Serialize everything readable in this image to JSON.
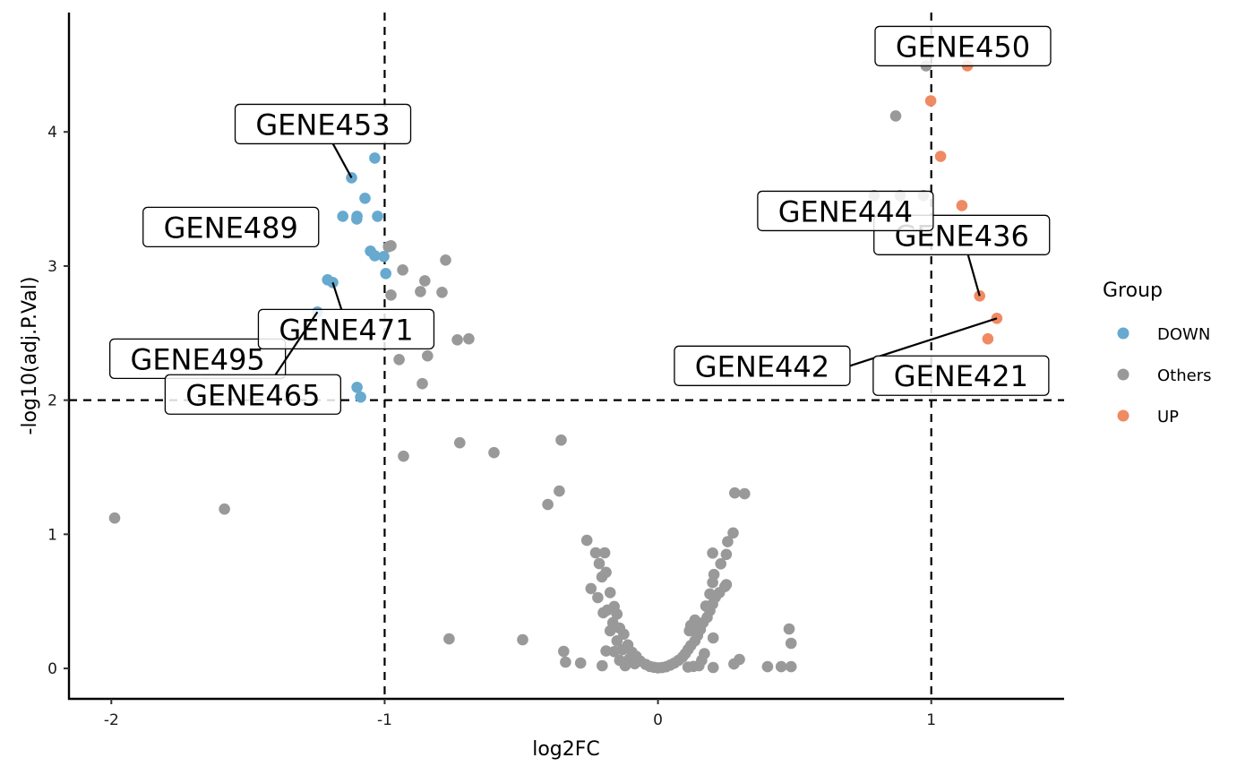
{
  "chart_data": {
    "type": "scatter",
    "title": "",
    "xlabel": "log2FC",
    "ylabel": "-log10(adj.P.Val)",
    "xlim": [
      -2.155,
      1.486
    ],
    "ylim": [
      -0.227,
      4.89
    ],
    "xticks": [
      -2,
      -1,
      0,
      1
    ],
    "xtick_labels": [
      "-2",
      "-1",
      "0",
      "1"
    ],
    "yticks": [
      0,
      1,
      2,
      3,
      4
    ],
    "ytick_labels": [
      "0",
      "1",
      "2",
      "3",
      "4"
    ],
    "grid": false,
    "thresholds": {
      "log2FC": [
        -1,
        1
      ],
      "neg_log10_padj": 2
    },
    "legend": {
      "title": "Group",
      "placement": "right",
      "entries": [
        {
          "label": "DOWN",
          "color": "#67A9CF"
        },
        {
          "label": "Others",
          "color": "#999999"
        },
        {
          "label": "UP",
          "color": "#EF8A62"
        }
      ]
    },
    "series": [
      {
        "name": "Others",
        "color": "#999999",
        "points": [
          [
            0.981,
            4.493
          ],
          [
            0.87,
            4.119
          ],
          [
            0.791,
            3.525
          ],
          [
            0.886,
            3.525
          ],
          [
            0.971,
            3.525
          ],
          [
            -0.977,
            3.151
          ],
          [
            -0.986,
            3.144
          ],
          [
            -0.934,
            2.971
          ],
          [
            -0.777,
            3.044
          ],
          [
            -0.977,
            2.784
          ],
          [
            -0.869,
            2.81
          ],
          [
            -0.853,
            2.89
          ],
          [
            -0.79,
            2.804
          ],
          [
            -0.734,
            2.45
          ],
          [
            -0.692,
            2.457
          ],
          [
            -0.947,
            2.303
          ],
          [
            -0.843,
            2.33
          ],
          [
            -0.862,
            2.123
          ],
          [
            -0.931,
            1.582
          ],
          [
            -0.725,
            1.682
          ],
          [
            -0.6,
            1.609
          ],
          [
            -1.988,
            1.121
          ],
          [
            -1.586,
            1.188
          ],
          [
            -0.354,
            1.702
          ],
          [
            -0.361,
            1.322
          ],
          [
            -0.403,
            1.222
          ],
          [
            0.281,
            1.308
          ],
          [
            0.317,
            1.302
          ],
          [
            -0.764,
            0.22
          ],
          [
            -0.495,
            0.214
          ],
          [
            -0.345,
            0.127
          ],
          [
            -0.338,
            0.047
          ],
          [
            -0.283,
            0.04
          ],
          [
            -0.204,
            0.02
          ],
          [
            0.202,
            0.227
          ],
          [
            0.202,
            0.007
          ],
          [
            0.278,
            0.033
          ],
          [
            0.298,
            0.067
          ],
          [
            0.401,
            0.013
          ],
          [
            0.451,
            0.013
          ],
          [
            0.487,
            0.013
          ],
          [
            0.48,
            0.294
          ],
          [
            0.487,
            0.187
          ],
          [
            -0.26,
            0.955
          ],
          [
            -0.228,
            0.862
          ],
          [
            -0.195,
            0.862
          ],
          [
            -0.215,
            0.782
          ],
          [
            -0.19,
            0.716
          ],
          [
            -0.205,
            0.682
          ],
          [
            -0.245,
            0.595
          ],
          [
            -0.22,
            0.528
          ],
          [
            -0.175,
            0.565
          ],
          [
            -0.16,
            0.462
          ],
          [
            -0.185,
            0.435
          ],
          [
            -0.2,
            0.415
          ],
          [
            -0.15,
            0.405
          ],
          [
            -0.165,
            0.34
          ],
          [
            -0.14,
            0.3
          ],
          [
            -0.175,
            0.28
          ],
          [
            -0.125,
            0.255
          ],
          [
            -0.15,
            0.205
          ],
          [
            -0.11,
            0.175
          ],
          [
            -0.13,
            0.14
          ],
          [
            -0.095,
            0.12
          ],
          [
            -0.16,
            0.125
          ],
          [
            -0.08,
            0.09
          ],
          [
            -0.105,
            0.07
          ],
          [
            -0.065,
            0.055
          ],
          [
            -0.085,
            0.035
          ],
          [
            -0.045,
            0.03
          ],
          [
            -0.03,
            0.015
          ],
          [
            -0.015,
            0.008
          ],
          [
            0.0,
            0.004
          ],
          [
            0.015,
            0.006
          ],
          [
            0.03,
            0.012
          ],
          [
            0.045,
            0.025
          ],
          [
            0.06,
            0.04
          ],
          [
            0.075,
            0.06
          ],
          [
            0.09,
            0.085
          ],
          [
            0.1,
            0.11
          ],
          [
            0.11,
            0.14
          ],
          [
            0.12,
            0.17
          ],
          [
            0.135,
            0.205
          ],
          [
            0.145,
            0.245
          ],
          [
            0.155,
            0.29
          ],
          [
            0.165,
            0.34
          ],
          [
            0.18,
            0.38
          ],
          [
            0.19,
            0.43
          ],
          [
            0.175,
            0.465
          ],
          [
            0.2,
            0.48
          ],
          [
            0.21,
            0.53
          ],
          [
            0.19,
            0.555
          ],
          [
            0.225,
            0.565
          ],
          [
            0.2,
            0.64
          ],
          [
            0.205,
            0.7
          ],
          [
            0.23,
            0.78
          ],
          [
            0.2,
            0.86
          ],
          [
            0.25,
            0.85
          ],
          [
            0.255,
            0.945
          ],
          [
            0.275,
            1.01
          ],
          [
            0.25,
            0.625
          ],
          [
            0.245,
            0.61
          ],
          [
            0.13,
            0.015
          ],
          [
            0.11,
            0.01
          ],
          [
            -0.12,
            0.02
          ],
          [
            0.16,
            0.06
          ],
          [
            0.17,
            0.11
          ],
          [
            -0.14,
            0.06
          ],
          [
            -0.19,
            0.13
          ],
          [
            0.15,
            0.02
          ],
          [
            0.12,
            0.32
          ],
          [
            0.135,
            0.36
          ],
          [
            0.115,
            0.28
          ]
        ]
      },
      {
        "name": "DOWN",
        "color": "#67A9CF",
        "points": [
          [
            -1.036,
            3.805
          ],
          [
            -1.121,
            3.658
          ],
          [
            -1.072,
            3.505
          ],
          [
            -1.153,
            3.371
          ],
          [
            -1.101,
            3.371
          ],
          [
            -1.102,
            3.351
          ],
          [
            -1.026,
            3.371
          ],
          [
            -1.052,
            3.111
          ],
          [
            -1.036,
            3.077
          ],
          [
            -1.003,
            3.071
          ],
          [
            -0.996,
            2.944
          ],
          [
            -1.209,
            2.897
          ],
          [
            -1.19,
            2.877
          ],
          [
            -1.246,
            2.657
          ],
          [
            -1.101,
            2.096
          ],
          [
            -1.088,
            2.023
          ]
        ]
      },
      {
        "name": "UP",
        "color": "#EF8A62",
        "points": [
          [
            1.132,
            4.493
          ],
          [
            0.998,
            4.232
          ],
          [
            1.034,
            3.818
          ],
          [
            1.112,
            3.451
          ],
          [
            1.177,
            2.777
          ],
          [
            1.24,
            2.61
          ],
          [
            1.207,
            2.457
          ]
        ]
      }
    ],
    "annotations": [
      {
        "text": "GENE453",
        "point": [
          -1.121,
          3.658
        ]
      },
      {
        "text": "GENE489",
        "point": [
          -1.153,
          3.371
        ]
      },
      {
        "text": "GENE495",
        "point": [
          -1.209,
          2.897
        ]
      },
      {
        "text": "GENE471",
        "point": [
          -1.19,
          2.877
        ]
      },
      {
        "text": "GENE465",
        "point": [
          -1.246,
          2.657
        ]
      },
      {
        "text": "GENE450",
        "point": [
          1.132,
          4.493
        ]
      },
      {
        "text": "GENE436",
        "point": [
          1.177,
          2.777
        ]
      },
      {
        "text": "GENE444",
        "point": [
          1.112,
          3.451
        ]
      },
      {
        "text": "GENE442",
        "point": [
          1.24,
          2.61
        ]
      },
      {
        "text": "GENE421",
        "point": [
          1.207,
          2.457
        ]
      }
    ]
  }
}
